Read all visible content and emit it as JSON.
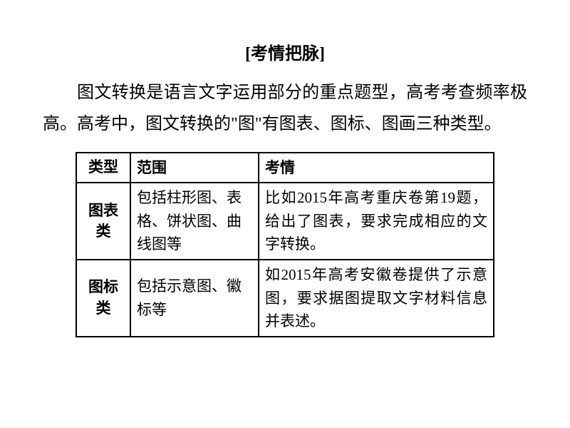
{
  "title": "[考情把脉]",
  "paragraph": "图文转换是语言文字运用部分的重点题型，高考考查频率极高。高考中，图文转换的\"图\"有图表、图标、图画三种类型。",
  "table": {
    "headers": {
      "col1": "类型",
      "col2": "范围",
      "col3": "考情"
    },
    "rows": [
      {
        "type": "图表类",
        "scope": "包括柱形图、表格、饼状图、曲线图等",
        "situation": "比如2015年高考重庆卷第19题，给出了图表，要求完成相应的文字转换。"
      },
      {
        "type": "图标类",
        "scope": "包括示意图、徽标等",
        "situation": "如2015年高考安徽卷提供了示意图，要求据图提取文字材料信息并表述。"
      }
    ]
  },
  "colors": {
    "background": "#ffffff",
    "text": "#000000",
    "border": "#000000"
  },
  "fonts": {
    "body_family": "SimSun",
    "title_size": 24,
    "paragraph_size": 24,
    "table_size": 21
  }
}
